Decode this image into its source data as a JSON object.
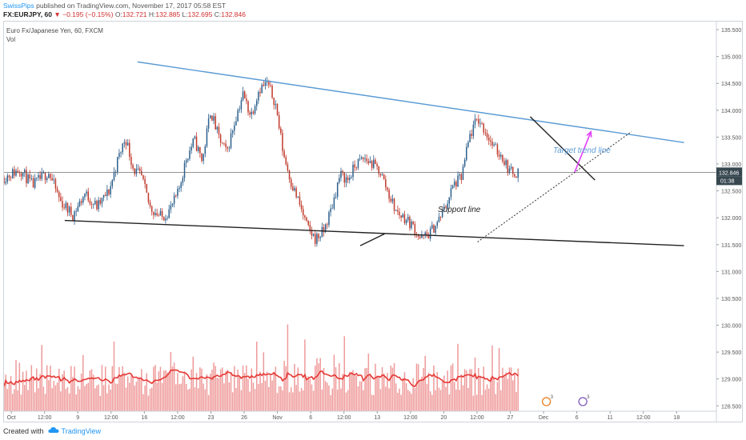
{
  "header": {
    "username": "SwissPips",
    "published": "published on TradingView.com, November 17, 2017 05:58 EST"
  },
  "ohlc": {
    "symbol": "FX:EURJPY, 60",
    "change": "▼ −0.195 (−0.15%)",
    "o_label": "O:",
    "o_value": "132.721",
    "h_label": "H:",
    "h_value": "132.885",
    "l_label": "L:",
    "l_value": "132.695",
    "c_label": "C:",
    "c_value": "132.846"
  },
  "pane": {
    "title": "Euro Fx/Japanese Yen, 60, FXCM",
    "vol_label": "Vol"
  },
  "colors": {
    "up": "#2b5f8c",
    "down": "#c0392b",
    "volume": "#ef9a9a",
    "volume_ma": "#e53935",
    "target_line": "#5b9bd5",
    "support_line": "#222222",
    "arrow": "#e040fb",
    "price_tag": "#37474f"
  },
  "annotations": {
    "target_label": "Target trend line",
    "support_label": "Support line"
  },
  "last_price": {
    "value": "132.846",
    "countdown": "01:38"
  },
  "event_markers": [
    "3",
    "3"
  ],
  "footer": {
    "created_with": "Created with",
    "brand": "TradingView",
    "logo_icon": "cloud-icon"
  },
  "chart_data": {
    "type": "candlestick",
    "title": "Euro Fx/Japanese Yen, 60, FXCM",
    "x_ticks": [
      "Oct",
      "12:00",
      "9",
      "12:00",
      "16",
      "12:00",
      "23",
      "26",
      "Nov",
      "6",
      "12:00",
      "13",
      "12:00",
      "20",
      "12:00",
      "27",
      "Dec",
      "6",
      "11",
      "12:00",
      "18"
    ],
    "y_ticks": [
      "135.500",
      "135.000",
      "134.500",
      "134.000",
      "133.500",
      "133.000",
      "132.500",
      "132.000",
      "131.500",
      "131.000",
      "130.500",
      "130.000",
      "129.500",
      "129.000",
      "128.500"
    ],
    "ylim": [
      128.4,
      135.65
    ],
    "price_path": [
      [
        0,
        132.75
      ],
      [
        0.04,
        132.9
      ],
      [
        0.07,
        132.6
      ],
      [
        0.11,
        132.85
      ],
      [
        0.14,
        132.3
      ],
      [
        0.17,
        132.05
      ],
      [
        0.2,
        132.45
      ],
      [
        0.23,
        132.2
      ],
      [
        0.26,
        132.5
      ],
      [
        0.28,
        133.05
      ],
      [
        0.3,
        133.5
      ],
      [
        0.32,
        132.9
      ],
      [
        0.34,
        132.75
      ],
      [
        0.36,
        132.2
      ],
      [
        0.39,
        132.0
      ],
      [
        0.41,
        132.15
      ],
      [
        0.43,
        132.45
      ],
      [
        0.45,
        133.1
      ],
      [
        0.47,
        133.45
      ],
      [
        0.49,
        133.05
      ],
      [
        0.51,
        134.0
      ],
      [
        0.53,
        133.5
      ],
      [
        0.55,
        133.2
      ],
      [
        0.57,
        133.8
      ],
      [
        0.59,
        134.3
      ],
      [
        0.61,
        133.9
      ],
      [
        0.63,
        134.4
      ],
      [
        0.65,
        134.5
      ],
      [
        0.67,
        134.15
      ],
      [
        0.69,
        133.2
      ],
      [
        0.71,
        132.65
      ],
      [
        0.73,
        132.25
      ],
      [
        0.75,
        131.8
      ],
      [
        0.77,
        131.6
      ],
      [
        0.79,
        131.75
      ],
      [
        0.81,
        132.2
      ],
      [
        0.83,
        132.8
      ],
      [
        0.85,
        132.7
      ],
      [
        0.87,
        133.0
      ],
      [
        0.89,
        133.1
      ],
      [
        0.91,
        133.0
      ],
      [
        0.93,
        132.85
      ],
      [
        0.95,
        132.45
      ],
      [
        0.97,
        132.1
      ],
      [
        0.99,
        132.0
      ],
      [
        1.01,
        131.85
      ],
      [
        1.03,
        131.6
      ],
      [
        1.05,
        131.7
      ],
      [
        1.07,
        131.9
      ],
      [
        1.09,
        132.2
      ],
      [
        1.11,
        132.6
      ],
      [
        1.13,
        132.75
      ],
      [
        1.15,
        133.5
      ],
      [
        1.17,
        133.85
      ],
      [
        1.19,
        133.6
      ],
      [
        1.21,
        133.3
      ],
      [
        1.23,
        133.15
      ],
      [
        1.25,
        132.85
      ],
      [
        1.27,
        132.85
      ]
    ],
    "annotations": [
      {
        "type": "line",
        "label": "Target trend line",
        "from": {
          "t": 0.33,
          "price": 134.9
        },
        "to": {
          "t": 1.68,
          "price": 133.4
        }
      },
      {
        "type": "line",
        "label": "Support line",
        "from": {
          "t": 0.15,
          "price": 131.95
        },
        "to": {
          "t": 1.68,
          "price": 131.48
        }
      },
      {
        "type": "line",
        "from": {
          "t": 1.3,
          "price": 133.88
        },
        "to": {
          "t": 1.46,
          "price": 132.7
        }
      },
      {
        "type": "line",
        "from": {
          "t": 0.88,
          "price": 131.48
        },
        "to": {
          "t": 0.94,
          "price": 131.7
        }
      },
      {
        "type": "dotted_line",
        "from": {
          "t": 1.17,
          "price": 131.55
        },
        "to": {
          "t": 1.55,
          "price": 133.6
        }
      },
      {
        "type": "arrow",
        "from": {
          "t": 1.41,
          "price": 132.85
        },
        "to": {
          "t": 1.45,
          "price": 133.6
        }
      }
    ],
    "volume_ylim": [
      0,
      120
    ]
  }
}
